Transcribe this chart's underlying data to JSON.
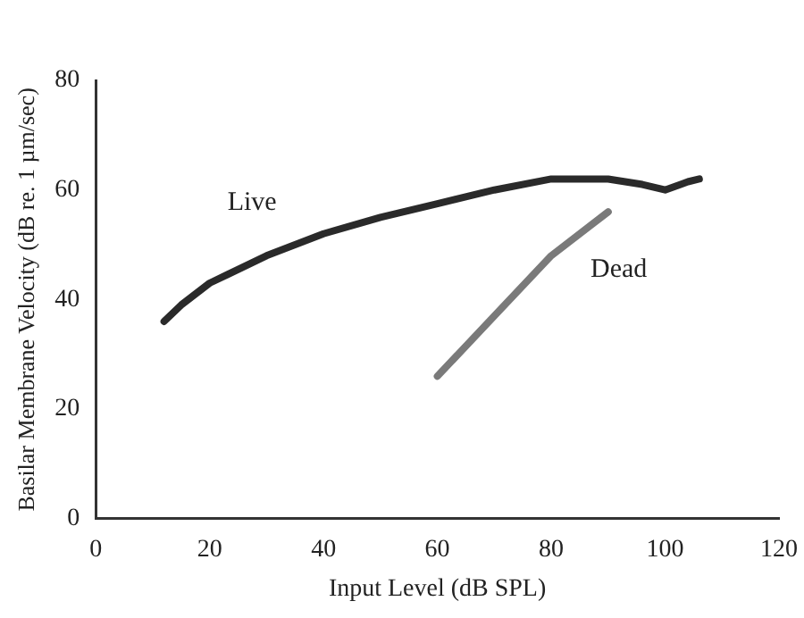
{
  "chart_data": {
    "type": "line",
    "xlabel": "Input Level (dB SPL)",
    "ylabel": "Basilar Membrane Velocity (dB re. 1 µm/sec)",
    "xlim": [
      0,
      120
    ],
    "xticks": [
      0,
      20,
      40,
      60,
      80,
      100,
      120
    ],
    "ylim": [
      0,
      80
    ],
    "yticks": [
      0,
      20,
      40,
      60,
      80
    ],
    "grid": false,
    "legend": false,
    "marker": "none",
    "line_style": "solid",
    "series": [
      {
        "name": "Live",
        "color": "#2a2a2a",
        "x": [
          12,
          15,
          20,
          30,
          40,
          50,
          60,
          70,
          80,
          90,
          96,
          100,
          104,
          106
        ],
        "values": [
          36,
          39,
          43,
          48,
          52,
          55,
          57.5,
          60,
          62,
          62,
          61,
          60,
          61.5,
          62
        ]
      },
      {
        "name": "Dead",
        "color": "#7a7a7a",
        "x": [
          60,
          70,
          80,
          90
        ],
        "values": [
          26,
          37,
          48,
          56
        ]
      }
    ]
  }
}
